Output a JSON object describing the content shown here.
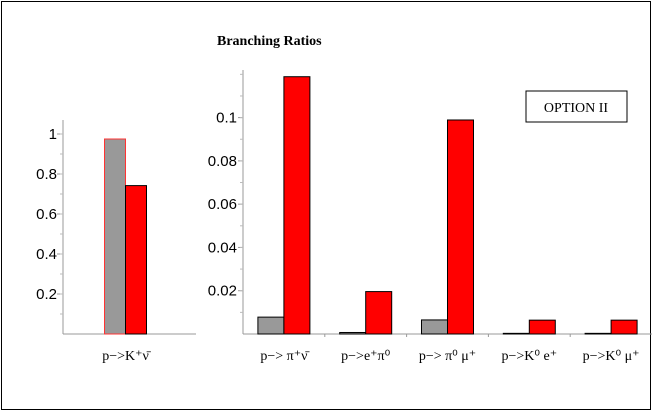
{
  "title": "Branching Ratios",
  "option_label": "OPTION II",
  "colors": {
    "gray": "#999999",
    "red": "#ff0000",
    "outline": "#000000",
    "left_outline": "#ff3333"
  },
  "chart_data": [
    {
      "type": "bar",
      "categories": [
        "p−>K⁺ν̄"
      ],
      "series": [
        {
          "values": [
            0.975
          ]
        },
        {
          "values": [
            0.742
          ]
        }
      ],
      "ylim": [
        0,
        1.05
      ],
      "yticks": [
        0.2,
        0.4,
        0.6,
        0.8,
        1
      ],
      "ytick_labels": [
        "0.2",
        "0.4",
        "0.6",
        "0.8",
        "1"
      ],
      "grid": false
    },
    {
      "type": "bar",
      "categories": [
        "p−> π⁺ν̄",
        "p−>e⁺π⁰",
        "p−> π⁰ μ⁺",
        "p−>K⁰ e⁺",
        "p−>K⁰ μ⁺"
      ],
      "series": [
        {
          "values": [
            0.0078,
            0.0007,
            0.0065,
            0.0003,
            0.0003
          ]
        },
        {
          "values": [
            0.1189,
            0.0196,
            0.0989,
            0.0064,
            0.0064
          ]
        }
      ],
      "ylim": [
        0,
        0.122
      ],
      "yticks": [
        0.02,
        0.04,
        0.06,
        0.08,
        0.1
      ],
      "ytick_labels": [
        "0.02",
        "0.04",
        "0.06",
        "0.08",
        "0.1"
      ],
      "grid": false
    }
  ]
}
